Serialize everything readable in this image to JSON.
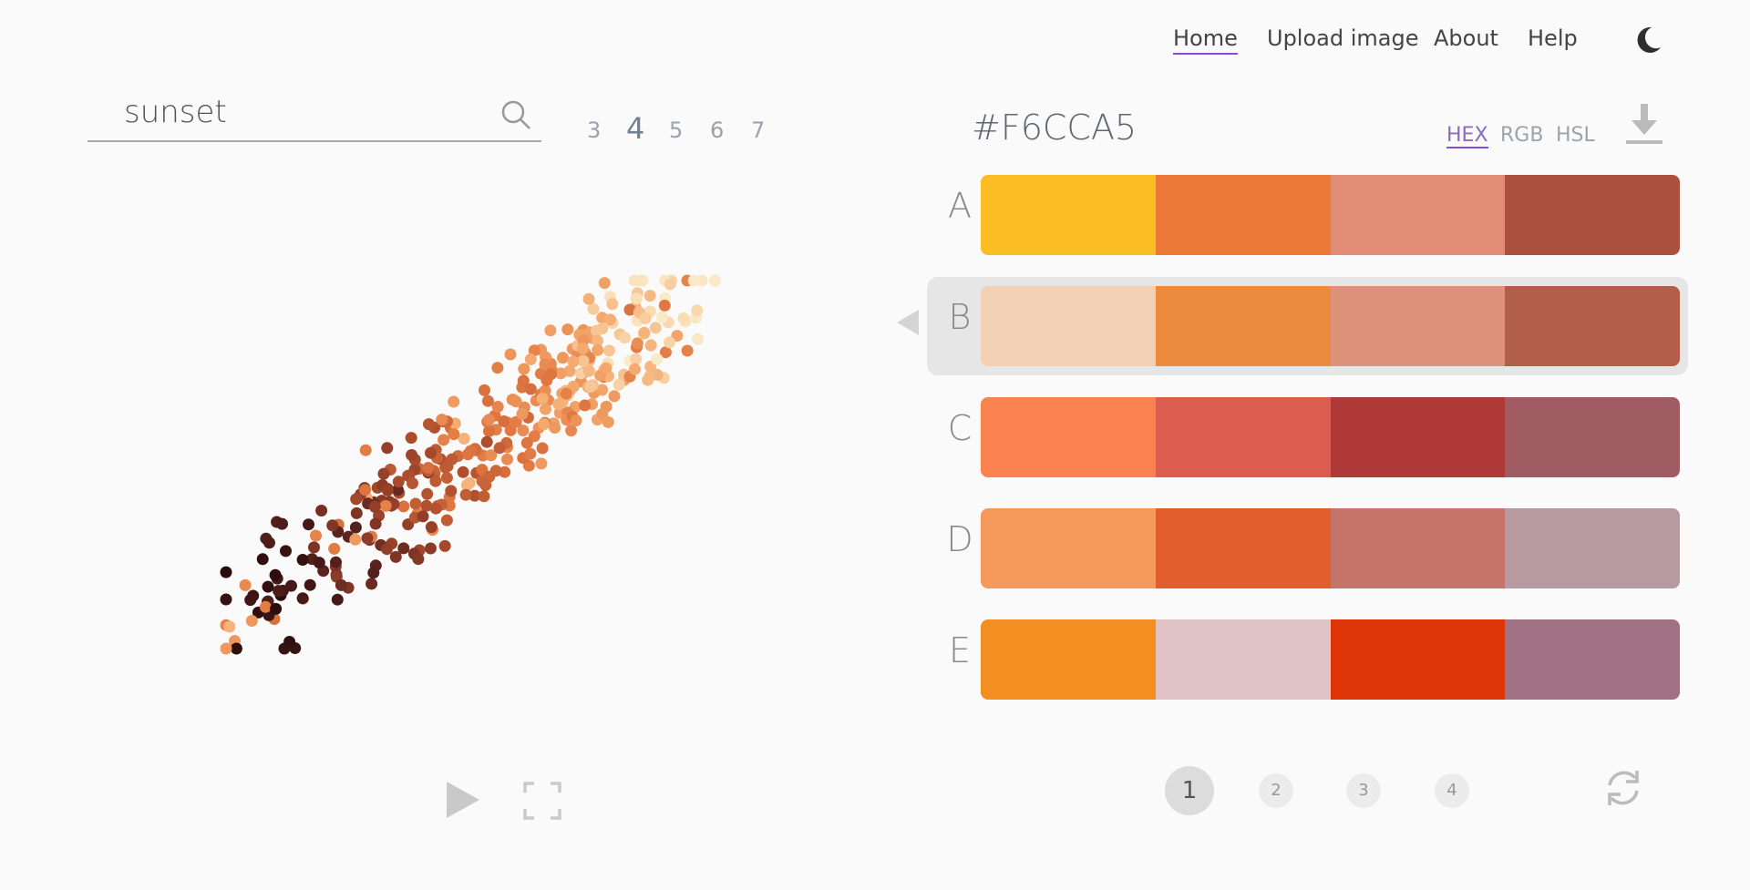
{
  "nav": {
    "items": [
      {
        "label": "Home",
        "active": true
      },
      {
        "label": "Upload image",
        "active": false
      },
      {
        "label": "About",
        "active": false
      },
      {
        "label": "Help",
        "active": false
      }
    ]
  },
  "search": {
    "value": "sunset",
    "icon": "search-icon"
  },
  "color_counts": [
    {
      "label": "3",
      "active": false
    },
    {
      "label": "4",
      "active": true
    },
    {
      "label": "5",
      "active": false
    },
    {
      "label": "6",
      "active": false
    },
    {
      "label": "7",
      "active": false
    }
  ],
  "selected_color": "#F6CCA5",
  "formats": [
    {
      "label": "HEX",
      "active": true
    },
    {
      "label": "RGB",
      "active": false
    },
    {
      "label": "HSL",
      "active": false
    }
  ],
  "palettes": [
    {
      "letter": "A",
      "selected": false,
      "colors": [
        "#fbbd24",
        "#eb7837",
        "#e18d76",
        "#ab503e"
      ]
    },
    {
      "letter": "B",
      "selected": true,
      "colors": [
        "#f4d0b4",
        "#ec8b3d",
        "#de9279",
        "#b35e4a"
      ]
    },
    {
      "letter": "C",
      "selected": false,
      "colors": [
        "#fa8150",
        "#da5d50",
        "#b03a38",
        "#a05c62"
      ]
    },
    {
      "letter": "D",
      "selected": false,
      "colors": [
        "#f69a5b",
        "#e35e2d",
        "#c6736a",
        "#b69a9f"
      ]
    },
    {
      "letter": "E",
      "selected": false,
      "colors": [
        "#f38e22",
        "#e0c3c4",
        "#de3508",
        "#a07083"
      ]
    }
  ],
  "pages": [
    {
      "label": "1",
      "active": true
    },
    {
      "label": "2",
      "active": false
    },
    {
      "label": "3",
      "active": false
    },
    {
      "label": "4",
      "active": false
    }
  ],
  "colors": {
    "accent_underline": "#8b4bd6",
    "background": "#fafafa",
    "selected_row_bg": "#e6e6e6"
  }
}
